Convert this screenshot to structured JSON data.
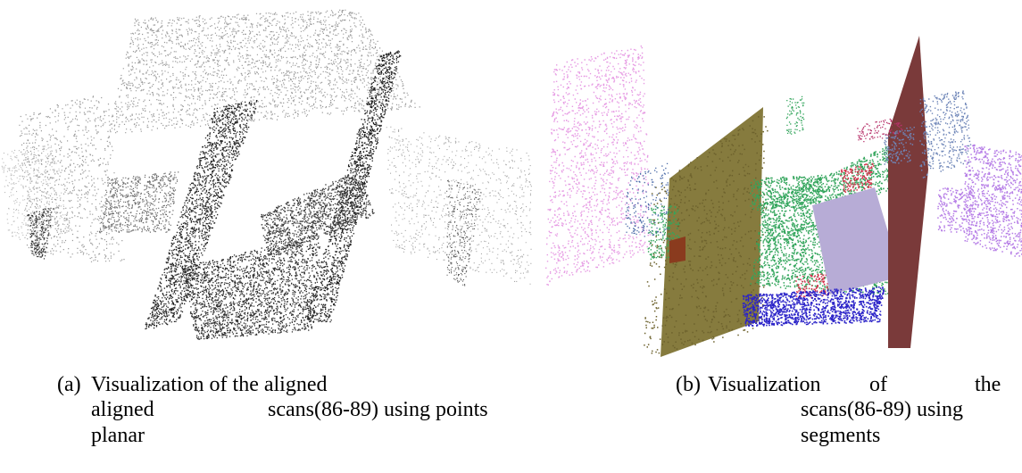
{
  "caption_a": {
    "label": "(a)",
    "line1": "Visualization of the aligned",
    "line2_left": "aligned",
    "line2_right": "scans(86-89) using points",
    "line3": "planar"
  },
  "caption_b": {
    "label": "(b)",
    "line1_a": "Visualization",
    "line1_b": "of",
    "line1_c": "the",
    "line2": "scans(86-89) using",
    "line3": "segments"
  },
  "segment_colors": {
    "pink": "#e69ae3",
    "olive": "#867b3e",
    "maroon": "#7a3a3a",
    "green": "#33a55c",
    "blue": "#2a22c8",
    "purple": "#b57ce6",
    "red": "#d6334d",
    "steel": "#6f86b8",
    "lavender": "#b7acd6",
    "grey_point": "#6a6a6a"
  }
}
